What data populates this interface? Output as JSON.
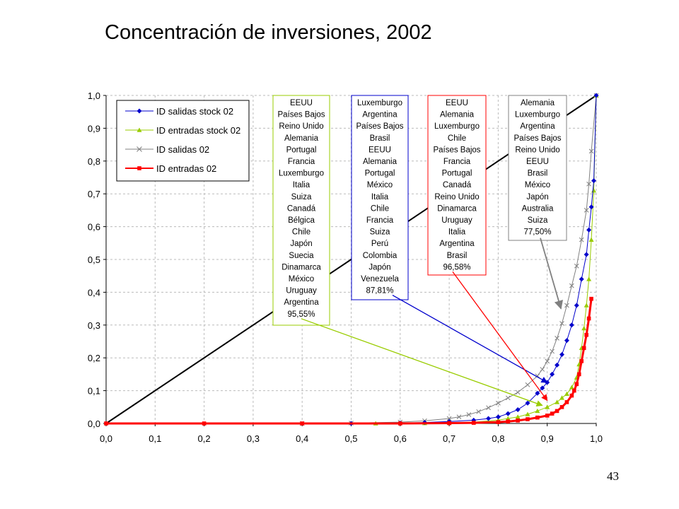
{
  "slide": {
    "title": "Concentración de inversiones, 2002",
    "page_number": "43"
  },
  "chart_data": {
    "type": "line",
    "title": "Concentración de inversiones, 2002",
    "xlabel": "",
    "ylabel": "",
    "xlim": [
      0,
      1
    ],
    "ylim": [
      0,
      1
    ],
    "x_ticks": [
      "0,0",
      "0,1",
      "0,2",
      "0,3",
      "0,4",
      "0,5",
      "0,6",
      "0,7",
      "0,8",
      "0,9",
      "1,0"
    ],
    "y_ticks": [
      "0,0",
      "0,1",
      "0,2",
      "0,3",
      "0,4",
      "0,5",
      "0,6",
      "0,7",
      "0,8",
      "0,9",
      "1,0"
    ],
    "grid": true,
    "legend_position": "top-left",
    "diagonal": {
      "points": [
        [
          0,
          0
        ],
        [
          1,
          1
        ]
      ],
      "color": "#000000"
    },
    "series": [
      {
        "name": "ID salidas stock 02",
        "color": "#0000cc",
        "marker": "diamond",
        "points": [
          [
            0.5,
            0.0
          ],
          [
            0.6,
            0.001
          ],
          [
            0.65,
            0.003
          ],
          [
            0.7,
            0.006
          ],
          [
            0.75,
            0.01
          ],
          [
            0.78,
            0.015
          ],
          [
            0.8,
            0.02
          ],
          [
            0.82,
            0.03
          ],
          [
            0.84,
            0.042
          ],
          [
            0.86,
            0.062
          ],
          [
            0.88,
            0.092
          ],
          [
            0.89,
            0.108
          ],
          [
            0.9,
            0.125
          ],
          [
            0.91,
            0.15
          ],
          [
            0.92,
            0.178
          ],
          [
            0.93,
            0.21
          ],
          [
            0.94,
            0.253
          ],
          [
            0.95,
            0.3
          ],
          [
            0.96,
            0.36
          ],
          [
            0.97,
            0.44
          ],
          [
            0.98,
            0.515
          ],
          [
            0.985,
            0.59
          ],
          [
            0.99,
            0.66
          ],
          [
            0.995,
            0.74
          ],
          [
            1.0,
            1.0
          ]
        ]
      },
      {
        "name": "ID entradas stock 02",
        "color": "#99cc00",
        "marker": "triangle",
        "points": [
          [
            0.55,
            0.0
          ],
          [
            0.65,
            0.001
          ],
          [
            0.7,
            0.002
          ],
          [
            0.75,
            0.004
          ],
          [
            0.8,
            0.01
          ],
          [
            0.82,
            0.015
          ],
          [
            0.84,
            0.02
          ],
          [
            0.86,
            0.028
          ],
          [
            0.88,
            0.038
          ],
          [
            0.9,
            0.05
          ],
          [
            0.92,
            0.065
          ],
          [
            0.93,
            0.078
          ],
          [
            0.94,
            0.09
          ],
          [
            0.95,
            0.11
          ],
          [
            0.96,
            0.14
          ],
          [
            0.965,
            0.18
          ],
          [
            0.97,
            0.23
          ],
          [
            0.975,
            0.29
          ],
          [
            0.98,
            0.36
          ],
          [
            0.985,
            0.44
          ],
          [
            0.99,
            0.56
          ],
          [
            0.995,
            0.71
          ],
          [
            1.0,
            1.0
          ]
        ]
      },
      {
        "name": "ID salidas 02",
        "color": "#808080",
        "marker": "x",
        "points": [
          [
            0.4,
            0.0
          ],
          [
            0.5,
            0.001
          ],
          [
            0.6,
            0.004
          ],
          [
            0.65,
            0.008
          ],
          [
            0.7,
            0.015
          ],
          [
            0.72,
            0.02
          ],
          [
            0.74,
            0.027
          ],
          [
            0.76,
            0.036
          ],
          [
            0.78,
            0.048
          ],
          [
            0.8,
            0.062
          ],
          [
            0.82,
            0.078
          ],
          [
            0.84,
            0.095
          ],
          [
            0.86,
            0.118
          ],
          [
            0.88,
            0.145
          ],
          [
            0.89,
            0.165
          ],
          [
            0.9,
            0.19
          ],
          [
            0.91,
            0.22
          ],
          [
            0.92,
            0.26
          ],
          [
            0.93,
            0.305
          ],
          [
            0.94,
            0.36
          ],
          [
            0.95,
            0.42
          ],
          [
            0.96,
            0.48
          ],
          [
            0.97,
            0.56
          ],
          [
            0.98,
            0.65
          ],
          [
            0.985,
            0.73
          ],
          [
            0.99,
            0.83
          ],
          [
            1.0,
            1.0
          ]
        ]
      },
      {
        "name": "ID entradas 02",
        "color": "#ff0000",
        "marker": "square",
        "points": [
          [
            0.0,
            0.0
          ],
          [
            0.2,
            0.0
          ],
          [
            0.4,
            0.0
          ],
          [
            0.6,
            0.0
          ],
          [
            0.7,
            0.001
          ],
          [
            0.75,
            0.002
          ],
          [
            0.8,
            0.004
          ],
          [
            0.82,
            0.006
          ],
          [
            0.84,
            0.009
          ],
          [
            0.86,
            0.013
          ],
          [
            0.88,
            0.018
          ],
          [
            0.9,
            0.024
          ],
          [
            0.91,
            0.03
          ],
          [
            0.92,
            0.038
          ],
          [
            0.93,
            0.05
          ],
          [
            0.94,
            0.065
          ],
          [
            0.95,
            0.085
          ],
          [
            0.955,
            0.1
          ],
          [
            0.96,
            0.12
          ],
          [
            0.965,
            0.15
          ],
          [
            0.97,
            0.19
          ],
          [
            0.975,
            0.23
          ],
          [
            0.98,
            0.27
          ],
          [
            0.985,
            0.32
          ],
          [
            0.99,
            0.38
          ]
        ]
      }
    ],
    "country_boxes": [
      {
        "color": "#99cc00",
        "series": "ID entradas stock 02",
        "items": [
          "EEUU",
          "Países Bajos",
          "Reino Unido",
          "Alemania",
          "Portugal",
          "Francia",
          "Luxemburgo",
          "Italia",
          "Suiza",
          "Canadá",
          "Bélgica",
          "Chile",
          "Japón",
          "Suecia",
          "Dinamarca",
          "México",
          "Uruguay",
          "Argentina",
          "95,55%"
        ],
        "arrow_to": [
          0.89,
          0.055
        ]
      },
      {
        "color": "#0000cc",
        "series": "ID salidas stock 02",
        "items": [
          "Luxemburgo",
          "Argentina",
          "Países Bajos",
          "Brasil",
          "EEUU",
          "Alemania",
          "Portugal",
          "México",
          "Italia",
          "Chile",
          "Francia",
          "Suiza",
          "Perú",
          "Colombia",
          "Japón",
          "Venezuela",
          "87,81%"
        ],
        "arrow_to": [
          0.9,
          0.125
        ]
      },
      {
        "color": "#ff0000",
        "series": "ID entradas 02",
        "items": [
          "EEUU",
          "Alemania",
          "Luxemburgo",
          "Chile",
          "Países Bajos",
          "Francia",
          "Portugal",
          "Canadá",
          "Reino Unido",
          "Dinamarca",
          "Uruguay",
          "Italia",
          "Argentina",
          "Brasil",
          "96,58%"
        ],
        "arrow_to": [
          0.9,
          0.07
        ]
      },
      {
        "color": "#808080",
        "series": "ID salidas 02",
        "items": [
          "Alemania",
          "Luxemburgo",
          "Argentina",
          "Países Bajos",
          "Reino Unido",
          "EEUU",
          "Brasil",
          "México",
          "Japón",
          "Australia",
          "Suiza",
          "77,50%"
        ],
        "arrow_to": [
          0.928,
          0.35
        ]
      }
    ]
  }
}
